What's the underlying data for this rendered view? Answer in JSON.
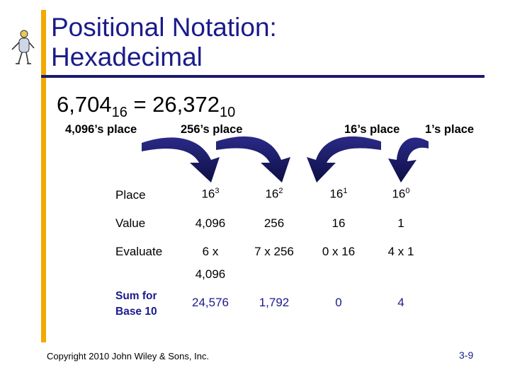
{
  "slide": {
    "title_line1": "Positional Notation:",
    "title_line2": "Hexadecimal",
    "equation": {
      "lhs": "6,704",
      "lhs_base": "16",
      "eq": " = ",
      "rhs": "26,372",
      "rhs_base": "10"
    },
    "place_labels": [
      "4,096’s place",
      "256’s place",
      "16’s place",
      "1’s place"
    ],
    "table": {
      "row_headers": [
        "Place",
        "Value",
        "Evaluate"
      ],
      "place": [
        {
          "base": "16",
          "exp": "3"
        },
        {
          "base": "16",
          "exp": "2"
        },
        {
          "base": "16",
          "exp": "1"
        },
        {
          "base": "16",
          "exp": "0"
        }
      ],
      "values": [
        "4,096",
        "256",
        "16",
        "1"
      ],
      "evaluate": [
        "6 x",
        "7 x 256",
        "0 x 16",
        "4 x 1"
      ],
      "evaluate_overflow": "4,096",
      "sum_header_line1": "Sum for",
      "sum_header_line2": "Base 10",
      "sums": [
        "24,576",
        "1,792",
        "0",
        "4"
      ]
    },
    "copyright": "Copyright 2010 John Wiley & Sons, Inc.",
    "page_number": "3-9",
    "colors": {
      "accent_bar": "#F2A900",
      "title": "#1a1a8c",
      "arrow": "#1a1a6e"
    },
    "icons": [
      "pin-figure-icon",
      "curved-arrow-icon"
    ]
  }
}
